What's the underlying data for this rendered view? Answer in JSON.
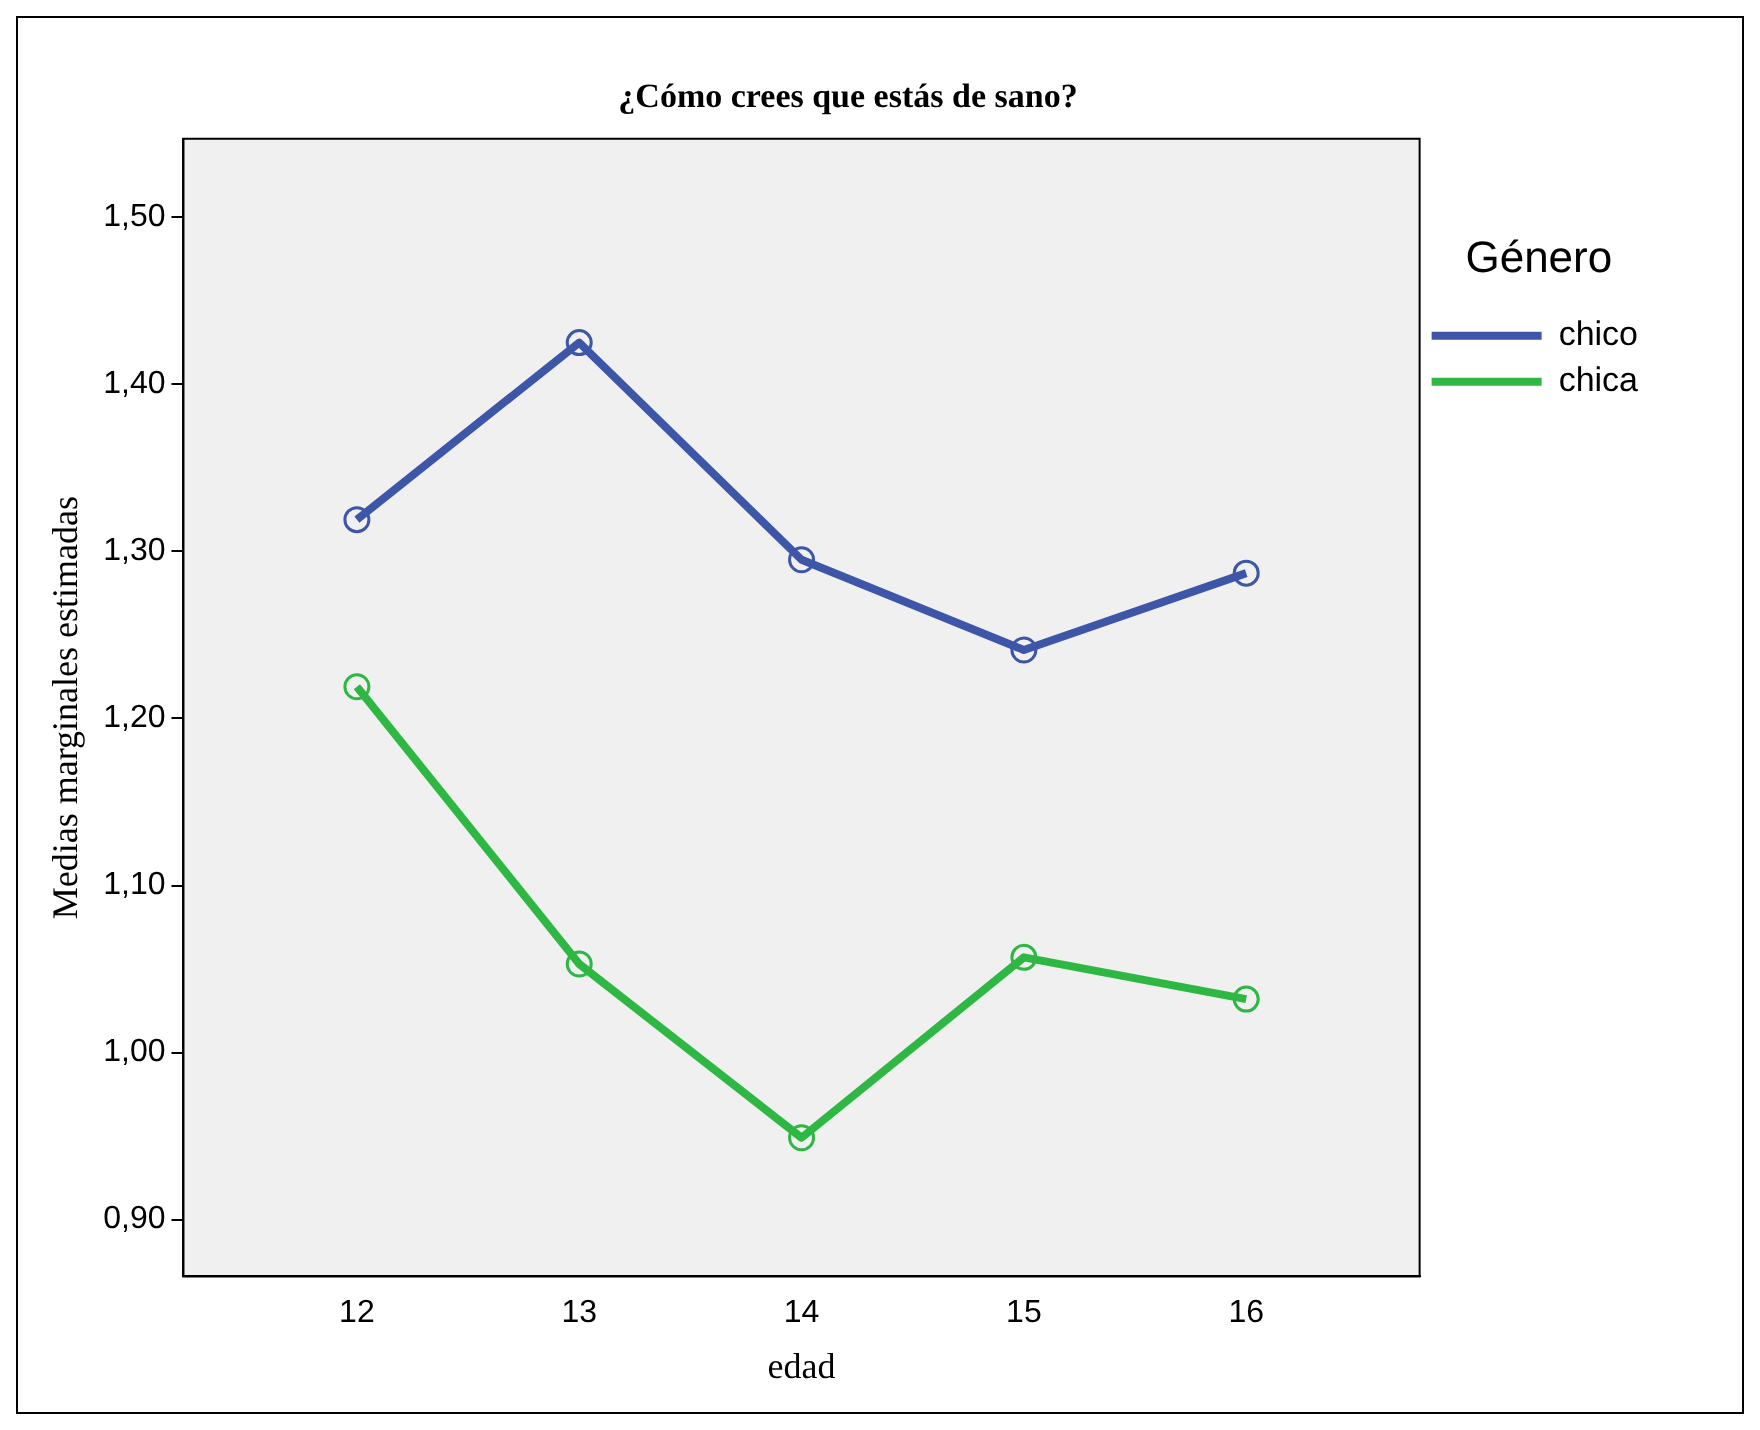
{
  "chart_data": {
    "type": "line",
    "title": "¿Cómo crees que estás de sano?",
    "xlabel": "edad",
    "ylabel": "Medias marginales estimadas",
    "legend_title": "Género",
    "x": [
      12,
      13,
      14,
      15,
      16
    ],
    "xlim": [
      11.22,
      16.78
    ],
    "xticks": [
      12,
      13,
      14,
      15,
      16
    ],
    "ylim": [
      0.866,
      1.547
    ],
    "yticks": [
      {
        "value": 0.9,
        "label": "0,90"
      },
      {
        "value": 1.0,
        "label": "1,00"
      },
      {
        "value": 1.1,
        "label": "1,10"
      },
      {
        "value": 1.2,
        "label": "1,20"
      },
      {
        "value": 1.3,
        "label": "1,30"
      },
      {
        "value": 1.4,
        "label": "1,40"
      },
      {
        "value": 1.5,
        "label": "1,50"
      }
    ],
    "series": [
      {
        "name": "chico",
        "color": "#3e56a8",
        "values": [
          1.319,
          1.425,
          1.295,
          1.241,
          1.287
        ]
      },
      {
        "name": "chica",
        "color": "#2fb744",
        "values": [
          1.219,
          1.053,
          0.949,
          1.057,
          1.032
        ]
      }
    ],
    "marker": "circle",
    "line_style": "solid",
    "grid": false,
    "legend": "right"
  }
}
